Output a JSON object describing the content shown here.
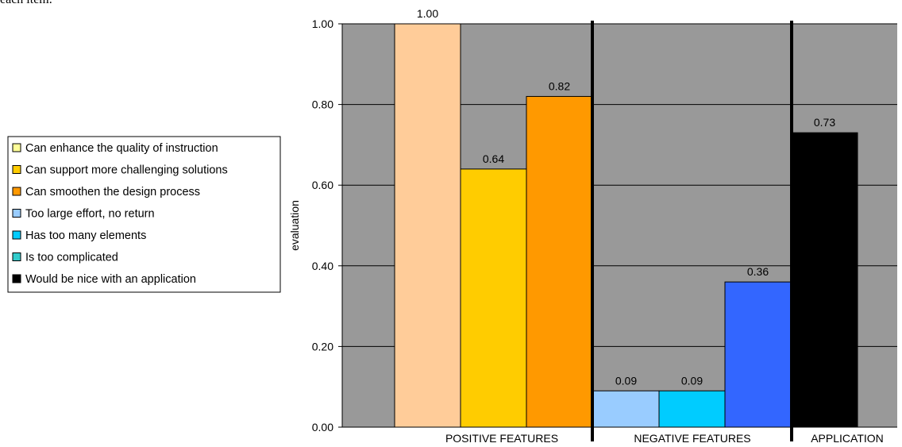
{
  "top_clipped_text": "each item.",
  "chart_data": {
    "type": "bar",
    "ylabel": "evaluation",
    "ylim": [
      0,
      1
    ],
    "yticks": [
      "0.00",
      "0.20",
      "0.40",
      "0.60",
      "0.80",
      "1.00"
    ],
    "grid": "horizontal",
    "legend_position": "left",
    "groups": [
      "POSITIVE FEATURES",
      "NEGATIVE FEATURES",
      "APPLICATION"
    ],
    "series": [
      {
        "name": "Can enhance the quality of instruction",
        "group": 0,
        "value": 1.0,
        "label": "1.00",
        "color": "#FFCC99",
        "legend_color": "#FFFF99"
      },
      {
        "name": "Can support more challenging solutions",
        "group": 0,
        "value": 0.64,
        "label": "0.64",
        "color": "#FFCC00",
        "legend_color": "#FFCC00"
      },
      {
        "name": "Can smoothen the design process",
        "group": 0,
        "value": 0.82,
        "label": "0.82",
        "color": "#FF9900",
        "legend_color": "#FF9900"
      },
      {
        "name": "Too large effort, no return",
        "group": 1,
        "value": 0.09,
        "label": "0.09",
        "color": "#99CCFF",
        "legend_color": "#99CCFF"
      },
      {
        "name": "Has too many elements",
        "group": 1,
        "value": 0.09,
        "label": "0.09",
        "color": "#00CCFF",
        "legend_color": "#00CCFF"
      },
      {
        "name": "Is too complicated",
        "group": 1,
        "value": 0.36,
        "label": "0.36",
        "color": "#3366FF",
        "legend_color": "#33CCCC"
      },
      {
        "name": "Would be nice with an application",
        "group": 2,
        "value": 0.73,
        "label": "0.73",
        "color": "#000000",
        "legend_color": "#000000"
      }
    ],
    "colors": {
      "plot_background": "#999999",
      "gridline": "#000000",
      "separator": "#000000"
    }
  }
}
